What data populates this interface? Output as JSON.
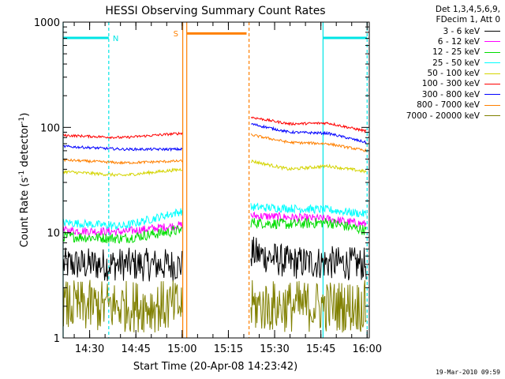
{
  "chart_data": {
    "type": "line",
    "title": "HESSI Observing Summary Count Rates",
    "xlabel": "Start Time (20-Apr-08 14:23:42)",
    "ylabel": "Count Rate (s",
    "ylabel_exp1": "-1",
    "ylabel_mid": " detector",
    "ylabel_exp2": "-1",
    "ylabel_end": ")",
    "yscale": "log",
    "ylim": [
      1,
      1000
    ],
    "xlim_minutes": [
      -2.3,
      97.0
    ],
    "y_tick_labels": [
      "1",
      "10",
      "100",
      "1000"
    ],
    "y_ticks": [
      1,
      10,
      100,
      1000
    ],
    "x_tick_labels": [
      "14:30",
      "14:45",
      "15:00",
      "15:15",
      "15:30",
      "15:45",
      "16:00"
    ],
    "x_ticks_minutes": [
      6.3,
      21.3,
      36.3,
      51.3,
      66.3,
      81.3,
      96.3
    ],
    "gaps": [
      {
        "start": 36.5,
        "end": 58.0,
        "label": "S",
        "color": "#ff8000"
      }
    ],
    "night_bars": [
      {
        "start": -2.3,
        "end": 12.5,
        "label": "N",
        "color": "#00e5e5"
      },
      {
        "start": 82.0,
        "end": 96.3,
        "label": "",
        "color": "#00e5e5"
      }
    ],
    "saa_bar": {
      "start": 37.8,
      "end": 57.2,
      "color": "#ff8000",
      "level": 780
    },
    "vlines": [
      {
        "t": -2.3,
        "color": "#00e5e5",
        "style": "solid"
      },
      {
        "t": 12.5,
        "color": "#00e5e5",
        "style": "dashed"
      },
      {
        "t": 36.5,
        "color": "#ff8000",
        "style": "solid"
      },
      {
        "t": 37.8,
        "color": "#ff8000",
        "style": "solid"
      },
      {
        "t": 58.0,
        "color": "#ff8000",
        "style": "dashed"
      },
      {
        "t": 82.0,
        "color": "#00e5e5",
        "style": "solid"
      },
      {
        "t": 96.3,
        "color": "#00e5e5",
        "style": "dashed"
      }
    ],
    "series": [
      {
        "name": "3 - 6 keV",
        "color": "#000000",
        "seg1": [
          5.0,
          5.0,
          4.9
        ],
        "seg2": [
          6.5,
          5.2,
          5.2,
          5.0
        ],
        "noise": 0.16
      },
      {
        "name": "6 - 12 keV",
        "color": "#ff00ff",
        "seg1": [
          10.5,
          10.2,
          11.8
        ],
        "seg2": [
          14.5,
          14.0,
          13.5,
          12.0
        ],
        "noise": 0.04
      },
      {
        "name": "12 - 25 keV",
        "color": "#00dd00",
        "seg1": [
          9.2,
          8.8,
          10.6
        ],
        "seg2": [
          12.5,
          12.0,
          12.5,
          10.5
        ],
        "noise": 0.05
      },
      {
        "name": "25 - 50 keV",
        "color": "#00ffff",
        "seg1": [
          12.5,
          11.5,
          16.0
        ],
        "seg2": [
          17.5,
          17.0,
          16.5,
          15.0
        ],
        "noise": 0.04
      },
      {
        "name": "50 - 100 keV",
        "color": "#d4d400",
        "seg1": [
          38,
          35,
          40
        ],
        "seg2": [
          48,
          40,
          43,
          38
        ],
        "noise": 0.015
      },
      {
        "name": "100 - 300 keV",
        "color": "#ff0000",
        "seg1": [
          84,
          80,
          88
        ],
        "seg2": [
          125,
          108,
          110,
          92
        ],
        "noise": 0.012
      },
      {
        "name": "300 - 800 keV",
        "color": "#0000ff",
        "seg1": [
          66,
          62,
          62
        ],
        "seg2": [
          108,
          90,
          88,
          72
        ],
        "noise": 0.012
      },
      {
        "name": "800 - 7000 keV",
        "color": "#ff8000",
        "seg1": [
          49,
          46,
          48
        ],
        "seg2": [
          85,
          72,
          70,
          60
        ],
        "noise": 0.012
      },
      {
        "name": "7000 - 20000 keV",
        "color": "#808000",
        "seg1": [
          2.0,
          2.0,
          2.0
        ],
        "seg2": [
          2.0,
          2.0,
          2.0,
          2.0
        ],
        "noise": 0.25
      }
    ]
  },
  "legend": {
    "header_line1": "Det 1,3,4,5,6,9,",
    "header_line2": "FDecim 1, Att 0"
  },
  "footer": {
    "timestamp": "19-Mar-2010 09:59"
  }
}
